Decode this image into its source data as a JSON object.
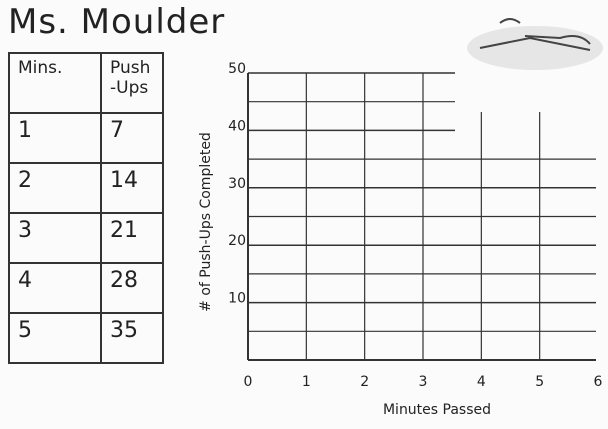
{
  "header": {
    "title": "Ms. Moulder"
  },
  "table": {
    "headers": [
      "Mins.",
      "Push -Ups"
    ],
    "rows": [
      [
        "1",
        "7"
      ],
      [
        "2",
        "14"
      ],
      [
        "3",
        "21"
      ],
      [
        "4",
        "28"
      ],
      [
        "5",
        "35"
      ]
    ]
  },
  "graph": {
    "y_label": "# of Push-Ups Completed",
    "x_label": "Minutes Passed",
    "xlim": [
      0,
      6
    ],
    "ylim": [
      0,
      50
    ],
    "xticks": [
      0,
      1,
      2,
      3,
      4,
      5,
      6
    ],
    "yticks": [
      10,
      20,
      30,
      40,
      50
    ]
  }
}
